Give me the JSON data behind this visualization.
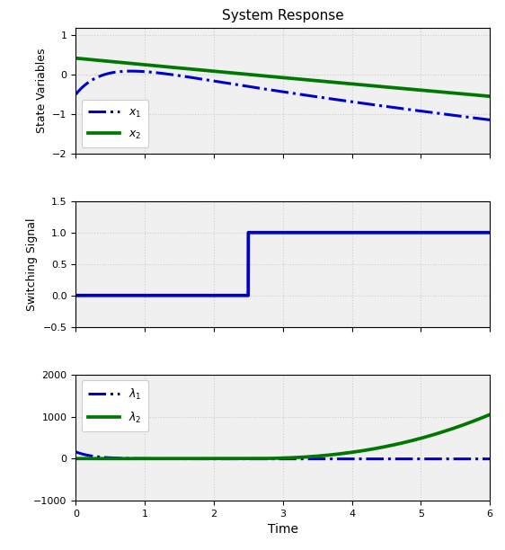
{
  "title": "System Response",
  "xlabel": "Time",
  "xlim": [
    0,
    6
  ],
  "xticks": [
    0,
    1,
    2,
    3,
    4,
    5,
    6
  ],
  "plot1": {
    "ylabel": "State Variables",
    "ylim": [
      -2,
      1.2
    ],
    "yticks": [
      -2,
      -1,
      0,
      1
    ],
    "legend": [
      {
        "label": "$x_1$",
        "style": "dashdot",
        "color": "#0000CC"
      },
      {
        "label": "$x_2$",
        "style": "solid",
        "color": "#007700"
      }
    ]
  },
  "plot2": {
    "ylabel": "Switching Signal",
    "ylim": [
      -0.5,
      1.5
    ],
    "yticks": [
      -0.5,
      0,
      0.5,
      1,
      1.5
    ],
    "switch_time": 2.5,
    "color": "#0000CC"
  },
  "plot3": {
    "ylim": [
      -1000,
      2000
    ],
    "yticks": [
      -1000,
      0,
      1000,
      2000
    ],
    "legend": [
      {
        "label": "$\\lambda_1$",
        "style": "dashdot",
        "color": "#0000CC"
      },
      {
        "label": "$\\lambda_2$",
        "style": "solid",
        "color": "#007700"
      }
    ]
  },
  "blue": "#0000CC",
  "green": "#007700",
  "bg_color": "#F0F0F0",
  "grid_color": "#CCCCCC",
  "grid_alpha": 1.0,
  "linewidth": 2.2
}
